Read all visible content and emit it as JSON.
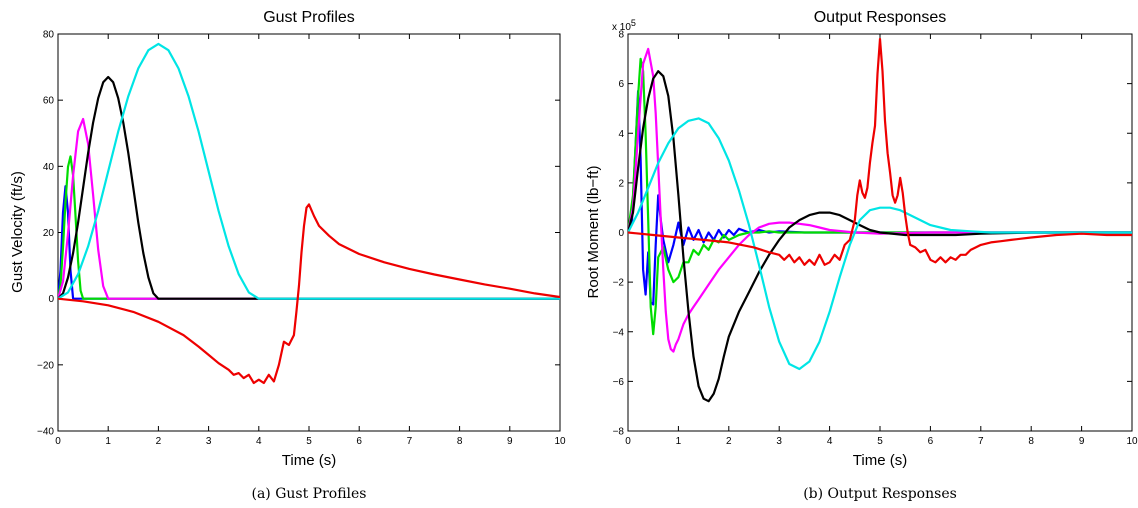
{
  "chart_data": [
    {
      "type": "line",
      "title": "Gust Profiles",
      "xlabel": "Time (s)",
      "ylabel": "Gust Velocity (ft/s)",
      "xlim": [
        0,
        10
      ],
      "ylim": [
        -40,
        80
      ],
      "xticks": [
        "0",
        "1",
        "2",
        "3",
        "4",
        "5",
        "6",
        "7",
        "8",
        "9",
        "10"
      ],
      "yticks": [
        "−40",
        "−20",
        "0",
        "20",
        "40",
        "60",
        "80"
      ],
      "grid": false,
      "caption": "(a)  Gust Profiles",
      "series": [
        {
          "color": "#0000ff",
          "x": [
            0,
            0.05,
            0.1,
            0.15,
            0.2,
            0.25,
            0.3,
            0.4,
            0.5,
            10
          ],
          "y": [
            0,
            8.5,
            26,
            34,
            26,
            8.5,
            0,
            0,
            0,
            0
          ]
        },
        {
          "color": "#00dd00",
          "x": [
            0,
            0.05,
            0.1,
            0.15,
            0.2,
            0.25,
            0.3,
            0.35,
            0.4,
            0.45,
            0.5,
            0.6,
            10
          ],
          "y": [
            0,
            4.1,
            15.5,
            29.3,
            39.9,
            43,
            37.2,
            24.6,
            11.3,
            2.4,
            0,
            0,
            0
          ]
        },
        {
          "color": "#ff00ff",
          "x": [
            0,
            0.1,
            0.2,
            0.3,
            0.4,
            0.5,
            0.6,
            0.7,
            0.8,
            0.9,
            1.0,
            10
          ],
          "y": [
            0,
            5.2,
            19.6,
            37.2,
            50.6,
            54.3,
            46.8,
            31.4,
            14.8,
            3.8,
            0,
            0
          ]
        },
        {
          "color": "#000000",
          "x": [
            0,
            0.1,
            0.2,
            0.3,
            0.4,
            0.5,
            0.6,
            0.7,
            0.8,
            0.9,
            1.0,
            1.1,
            1.2,
            1.3,
            1.4,
            1.5,
            1.6,
            1.7,
            1.8,
            1.9,
            2.0,
            10
          ],
          "y": [
            0,
            1.6,
            6.4,
            13.8,
            23,
            33.5,
            44,
            53.2,
            60.6,
            65.4,
            67,
            65.4,
            60.6,
            53.2,
            44,
            33.5,
            23,
            13.8,
            6.4,
            1.6,
            0,
            0
          ]
        },
        {
          "color": "#00e5e5",
          "x": [
            0,
            0.2,
            0.4,
            0.6,
            0.8,
            1.0,
            1.2,
            1.4,
            1.6,
            1.8,
            2.0,
            2.2,
            2.4,
            2.6,
            2.8,
            3.0,
            3.2,
            3.4,
            3.6,
            3.8,
            4.0,
            10
          ],
          "y": [
            0,
            1.9,
            7.4,
            15.8,
            26.5,
            38.5,
            50.5,
            61.2,
            69.6,
            75.1,
            77,
            75.1,
            69.6,
            61.2,
            50.5,
            38.5,
            26.5,
            15.8,
            7.4,
            1.9,
            0,
            0
          ]
        },
        {
          "color": "#ee0000",
          "x": [
            0,
            0.5,
            1.0,
            1.5,
            2.0,
            2.5,
            2.8,
            3.0,
            3.2,
            3.4,
            3.5,
            3.6,
            3.7,
            3.8,
            3.9,
            4.0,
            4.1,
            4.2,
            4.3,
            4.4,
            4.5,
            4.6,
            4.7,
            4.75,
            4.8,
            4.85,
            4.9,
            4.95,
            5.0,
            5.1,
            5.2,
            5.4,
            5.6,
            6.0,
            6.5,
            7.0,
            7.5,
            8.0,
            8.5,
            9.0,
            9.5,
            10.0
          ],
          "y": [
            0,
            -0.8,
            -2,
            -4,
            -7,
            -11,
            -14.5,
            -17,
            -19.5,
            -21.5,
            -23,
            -22.5,
            -24,
            -23,
            -25.5,
            -24.5,
            -25.5,
            -23,
            -25,
            -20,
            -13,
            -14,
            -11,
            -4,
            4,
            14,
            22,
            27.5,
            28.5,
            25,
            22,
            19,
            16.5,
            13.5,
            11,
            9,
            7.3,
            5.8,
            4.3,
            3,
            1.6,
            0.5
          ]
        }
      ]
    },
    {
      "type": "line",
      "title": "Output Responses",
      "xlabel": "Time (s)",
      "ylabel": "Root Moment (lb−ft)",
      "xlim": [
        0,
        10
      ],
      "ylim": [
        -8,
        8
      ],
      "scale_note": "x 10",
      "scale_exponent": "5",
      "xticks": [
        "0",
        "1",
        "2",
        "3",
        "4",
        "5",
        "6",
        "7",
        "8",
        "9",
        "10"
      ],
      "yticks": [
        "−8",
        "−6",
        "−4",
        "−2",
        "0",
        "2",
        "4",
        "6",
        "8"
      ],
      "grid": false,
      "caption": "(b)  Output Responses",
      "series": [
        {
          "color": "#0000ff",
          "x": [
            0,
            0.08,
            0.15,
            0.2,
            0.25,
            0.3,
            0.35,
            0.4,
            0.45,
            0.5,
            0.55,
            0.6,
            0.65,
            0.7,
            0.8,
            0.9,
            1.0,
            1.1,
            1.2,
            1.3,
            1.4,
            1.5,
            1.6,
            1.7,
            1.8,
            1.9,
            2.0,
            2.1,
            2.2,
            2.4,
            2.6,
            2.8,
            3.0,
            3.5,
            4.0,
            5.0,
            7.0,
            10.0
          ],
          "y": [
            0,
            0.5,
            3.5,
            5.7,
            3,
            -1.5,
            -2.5,
            -0.8,
            -2.8,
            -2.9,
            -0.5,
            1.5,
            0.5,
            -0.3,
            -1.2,
            -0.5,
            0.4,
            -0.5,
            0.2,
            -0.3,
            0.1,
            -0.4,
            0,
            -0.3,
            0.1,
            -0.2,
            0.1,
            -0.1,
            0.15,
            0,
            0.1,
            0,
            0.05,
            0,
            0,
            0,
            0,
            0
          ]
        },
        {
          "color": "#00dd00",
          "x": [
            0,
            0.1,
            0.2,
            0.25,
            0.3,
            0.35,
            0.4,
            0.45,
            0.5,
            0.55,
            0.6,
            0.65,
            0.7,
            0.8,
            0.9,
            1.0,
            1.1,
            1.2,
            1.3,
            1.4,
            1.5,
            1.6,
            1.7,
            1.8,
            1.9,
            2.0,
            2.2,
            2.4,
            2.6,
            2.8,
            3.0,
            3.5,
            4.0,
            5.0,
            7.0,
            10.0
          ],
          "y": [
            0,
            1.5,
            5.5,
            7,
            6.5,
            4,
            0.5,
            -3,
            -4.1,
            -3,
            -1,
            -0.8,
            -0.6,
            -1.5,
            -2,
            -1.8,
            -1.2,
            -1.2,
            -0.7,
            -0.9,
            -0.5,
            -0.7,
            -0.3,
            -0.4,
            -0.1,
            -0.3,
            -0.1,
            0,
            0,
            0.05,
            0,
            0,
            0,
            0,
            0,
            0
          ]
        },
        {
          "color": "#ff00ff",
          "x": [
            0,
            0.1,
            0.2,
            0.3,
            0.4,
            0.5,
            0.55,
            0.6,
            0.65,
            0.7,
            0.75,
            0.8,
            0.85,
            0.9,
            0.95,
            1.0,
            1.1,
            1.2,
            1.3,
            1.4,
            1.6,
            1.8,
            2.0,
            2.2,
            2.4,
            2.6,
            2.8,
            3.0,
            3.2,
            3.4,
            3.6,
            3.8,
            4.0,
            4.5,
            5.0,
            6.0,
            7.0,
            8.0,
            10.0
          ],
          "y": [
            0,
            1,
            4,
            6.8,
            7.4,
            6.3,
            4.8,
            2.7,
            0.5,
            -1.5,
            -3.2,
            -4.3,
            -4.7,
            -4.8,
            -4.5,
            -4.3,
            -3.7,
            -3.3,
            -3,
            -2.7,
            -2.1,
            -1.5,
            -1,
            -0.5,
            -0.1,
            0.2,
            0.35,
            0.4,
            0.4,
            0.35,
            0.3,
            0.2,
            0.1,
            0,
            -0.05,
            0,
            0,
            0,
            0
          ]
        },
        {
          "color": "#000000",
          "x": [
            0,
            0.1,
            0.2,
            0.3,
            0.4,
            0.5,
            0.6,
            0.7,
            0.8,
            0.9,
            1.0,
            1.1,
            1.2,
            1.3,
            1.4,
            1.5,
            1.6,
            1.7,
            1.8,
            1.9,
            2.0,
            2.2,
            2.4,
            2.6,
            2.8,
            3.0,
            3.2,
            3.4,
            3.6,
            3.8,
            4.0,
            4.2,
            4.4,
            4.6,
            4.8,
            5.0,
            5.5,
            6.0,
            6.5,
            7.0,
            8.0,
            9.0,
            10.0
          ],
          "y": [
            0,
            0.8,
            2.6,
            4.2,
            5.4,
            6.2,
            6.5,
            6.3,
            5.5,
            3.8,
            1.5,
            -1,
            -3.2,
            -5,
            -6.2,
            -6.7,
            -6.8,
            -6.5,
            -5.9,
            -5,
            -4.2,
            -3.2,
            -2.4,
            -1.6,
            -0.9,
            -0.3,
            0.2,
            0.5,
            0.7,
            0.8,
            0.8,
            0.7,
            0.5,
            0.3,
            0.1,
            0,
            -0.1,
            -0.1,
            -0.1,
            -0.05,
            0,
            0,
            0
          ]
        },
        {
          "color": "#00e5e5",
          "x": [
            0,
            0.2,
            0.4,
            0.6,
            0.8,
            1.0,
            1.2,
            1.4,
            1.6,
            1.8,
            2.0,
            2.2,
            2.4,
            2.6,
            2.8,
            3.0,
            3.2,
            3.4,
            3.6,
            3.8,
            4.0,
            4.2,
            4.4,
            4.6,
            4.8,
            5.0,
            5.2,
            5.4,
            5.6,
            5.8,
            6.0,
            6.4,
            6.8,
            7.2,
            8.0,
            9.0,
            10.0
          ],
          "y": [
            0,
            0.8,
            1.8,
            2.8,
            3.6,
            4.2,
            4.5,
            4.6,
            4.4,
            3.8,
            2.9,
            1.7,
            0.3,
            -1.3,
            -3,
            -4.4,
            -5.3,
            -5.5,
            -5.2,
            -4.4,
            -3.2,
            -1.8,
            -0.5,
            0.5,
            0.9,
            1,
            1,
            0.9,
            0.7,
            0.5,
            0.3,
            0.1,
            0.05,
            0,
            0,
            0,
            0
          ]
        },
        {
          "color": "#ee0000",
          "x": [
            0,
            0.5,
            1.0,
            1.5,
            2.0,
            2.5,
            2.8,
            3.0,
            3.1,
            3.2,
            3.3,
            3.4,
            3.5,
            3.6,
            3.7,
            3.8,
            3.9,
            4.0,
            4.1,
            4.2,
            4.3,
            4.4,
            4.5,
            4.55,
            4.6,
            4.65,
            4.7,
            4.75,
            4.8,
            4.85,
            4.9,
            4.95,
            5.0,
            5.05,
            5.1,
            5.15,
            5.2,
            5.25,
            5.3,
            5.35,
            5.4,
            5.45,
            5.5,
            5.55,
            5.6,
            5.7,
            5.8,
            5.9,
            6.0,
            6.1,
            6.2,
            6.3,
            6.4,
            6.5,
            6.6,
            6.7,
            6.8,
            6.9,
            7.0,
            7.2,
            7.4,
            7.6,
            7.8,
            8.0,
            8.5,
            9.0,
            9.5,
            10.0
          ],
          "y": [
            0,
            -0.1,
            -0.2,
            -0.3,
            -0.4,
            -0.6,
            -0.8,
            -0.9,
            -1.1,
            -0.9,
            -1.2,
            -1,
            -1.3,
            -1.1,
            -1.3,
            -0.9,
            -1.3,
            -1.2,
            -0.9,
            -1.1,
            -0.5,
            -0.3,
            0.5,
            1.5,
            2.1,
            1.6,
            1.4,
            1.8,
            2.8,
            3.6,
            4.3,
            6.4,
            7.8,
            6.5,
            4.5,
            3.2,
            2.4,
            1.5,
            1.2,
            1.5,
            2.2,
            1.6,
            0.7,
            0,
            -0.5,
            -0.6,
            -0.8,
            -0.7,
            -1.1,
            -1.2,
            -1,
            -1.2,
            -1,
            -1.1,
            -0.9,
            -0.9,
            -0.7,
            -0.6,
            -0.5,
            -0.4,
            -0.35,
            -0.3,
            -0.25,
            -0.2,
            -0.1,
            -0.05,
            -0.1,
            -0.1
          ]
        }
      ]
    }
  ]
}
